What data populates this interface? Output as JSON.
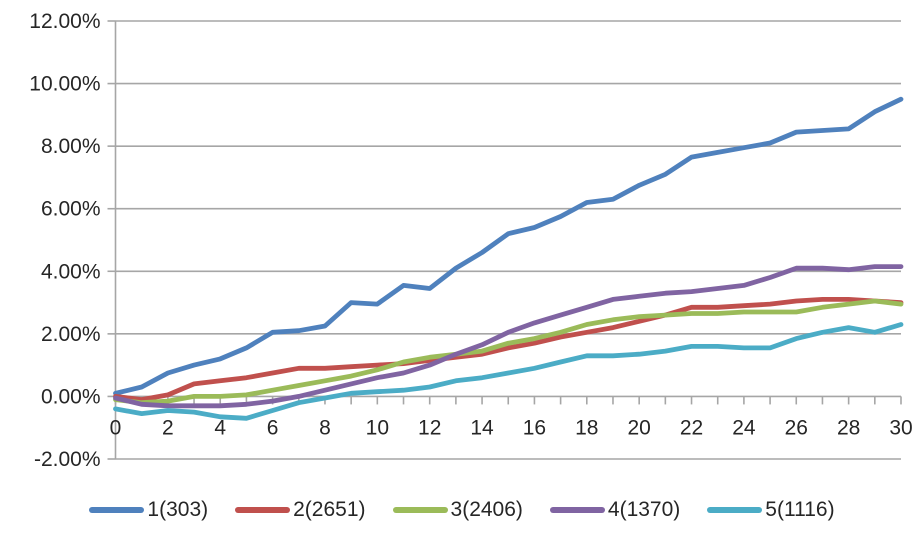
{
  "chart_data": {
    "type": "line",
    "title": "",
    "xlabel": "",
    "ylabel": "",
    "xlim": [
      0,
      30
    ],
    "ylim": [
      -2,
      12
    ],
    "grid": "horizontal",
    "legend_position": "bottom",
    "grid_color": "#A6A6A6",
    "text_color": "#262626",
    "x": [
      0,
      1,
      2,
      3,
      4,
      5,
      6,
      7,
      8,
      9,
      10,
      11,
      12,
      13,
      14,
      15,
      16,
      17,
      18,
      19,
      20,
      21,
      22,
      23,
      24,
      25,
      26,
      27,
      28,
      29,
      30
    ],
    "x_tick_labels": [
      "0",
      "2",
      "4",
      "6",
      "8",
      "10",
      "12",
      "14",
      "16",
      "18",
      "20",
      "22",
      "24",
      "26",
      "28",
      "30"
    ],
    "y_ticks": [
      {
        "value": 12,
        "label": "12.00%"
      },
      {
        "value": 10,
        "label": "10.00%"
      },
      {
        "value": 8,
        "label": "8.00%"
      },
      {
        "value": 6,
        "label": "6.00%"
      },
      {
        "value": 4,
        "label": "4.00%"
      },
      {
        "value": 2,
        "label": "2.00%"
      },
      {
        "value": 0,
        "label": "0.00%"
      },
      {
        "value": -2,
        "label": "-2.00%"
      }
    ],
    "series": [
      {
        "name": "1(303)",
        "color": "#4F81BD",
        "values": [
          0.1,
          0.3,
          0.75,
          1.0,
          1.2,
          1.55,
          2.05,
          2.1,
          2.25,
          3.0,
          2.95,
          3.55,
          3.45,
          4.1,
          4.6,
          5.2,
          5.4,
          5.75,
          6.2,
          6.3,
          6.75,
          7.1,
          7.65,
          7.8,
          7.95,
          8.1,
          8.45,
          8.5,
          8.55,
          9.1,
          9.5
        ]
      },
      {
        "name": "2(2651)",
        "color": "#C0504D",
        "values": [
          0.0,
          -0.1,
          0.05,
          0.4,
          0.5,
          0.6,
          0.75,
          0.9,
          0.9,
          0.95,
          1.0,
          1.05,
          1.15,
          1.25,
          1.35,
          1.55,
          1.7,
          1.9,
          2.05,
          2.2,
          2.4,
          2.6,
          2.85,
          2.85,
          2.9,
          2.95,
          3.05,
          3.1,
          3.1,
          3.05,
          3.0
        ]
      },
      {
        "name": "3(2406)",
        "color": "#9BBB59",
        "values": [
          -0.1,
          -0.2,
          -0.15,
          0.0,
          0.0,
          0.05,
          0.2,
          0.35,
          0.5,
          0.65,
          0.85,
          1.1,
          1.25,
          1.35,
          1.45,
          1.7,
          1.85,
          2.05,
          2.3,
          2.45,
          2.55,
          2.6,
          2.65,
          2.65,
          2.7,
          2.7,
          2.7,
          2.85,
          2.95,
          3.05,
          2.95
        ]
      },
      {
        "name": "4(1370)",
        "color": "#8064A2",
        "values": [
          -0.05,
          -0.25,
          -0.3,
          -0.3,
          -0.3,
          -0.25,
          -0.15,
          0.0,
          0.2,
          0.4,
          0.6,
          0.75,
          1.0,
          1.35,
          1.65,
          2.05,
          2.35,
          2.6,
          2.85,
          3.1,
          3.2,
          3.3,
          3.35,
          3.45,
          3.55,
          3.8,
          4.1,
          4.1,
          4.05,
          4.15,
          4.15
        ]
      },
      {
        "name": "5(1116)",
        "color": "#4BACC6",
        "values": [
          -0.4,
          -0.55,
          -0.45,
          -0.5,
          -0.65,
          -0.7,
          -0.45,
          -0.2,
          -0.05,
          0.1,
          0.15,
          0.2,
          0.3,
          0.5,
          0.6,
          0.75,
          0.9,
          1.1,
          1.3,
          1.3,
          1.35,
          1.45,
          1.6,
          1.6,
          1.55,
          1.55,
          1.85,
          2.05,
          2.2,
          2.05,
          2.3
        ]
      }
    ]
  }
}
